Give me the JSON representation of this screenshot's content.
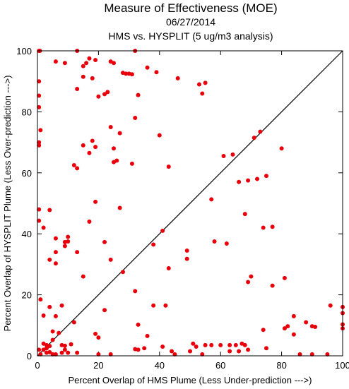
{
  "title": "Measure of Effectiveness (MOE)",
  "subtitle_date": "06/27/2014",
  "subtitle_analysis": "HMS vs. HYSPLIT  (5 ug/m3 analysis)",
  "chart_data": {
    "type": "scatter",
    "xlabel": "Percent Overlap of HMS Plume (Less Under-prediction --->)",
    "ylabel": "Percent Overlap of HYSPLIT Plume (Less Over-prediction --->)",
    "xlim": [
      0,
      100
    ],
    "ylim": [
      0,
      100
    ],
    "xticks": [
      0,
      20,
      40,
      60,
      80,
      100
    ],
    "yticks": [
      0,
      20,
      40,
      60,
      80,
      100
    ],
    "grid": false,
    "reference_line": "y = x",
    "colors": {
      "points": "#e8000b",
      "line": "#000000",
      "axes": "#000000"
    },
    "points": [
      [
        0.5,
        100
      ],
      [
        0.8,
        100
      ],
      [
        13,
        100
      ],
      [
        32,
        100
      ],
      [
        0.5,
        90
      ],
      [
        6,
        96.5
      ],
      [
        9,
        96
      ],
      [
        15,
        95
      ],
      [
        17,
        97.5
      ],
      [
        16,
        96
      ],
      [
        19,
        97
      ],
      [
        24,
        96.5
      ],
      [
        25,
        96
      ],
      [
        36,
        94.5
      ],
      [
        39,
        93
      ],
      [
        28,
        92.8
      ],
      [
        29,
        92.5
      ],
      [
        30,
        92.5
      ],
      [
        31,
        92.3
      ],
      [
        15,
        91.5
      ],
      [
        18,
        91
      ],
      [
        46,
        91
      ],
      [
        55,
        89.5
      ],
      [
        53,
        89
      ],
      [
        13,
        87.5
      ],
      [
        54,
        86
      ],
      [
        23,
        86.5
      ],
      [
        22,
        85.8
      ],
      [
        33,
        85.5
      ],
      [
        0.5,
        85.3
      ],
      [
        20,
        85
      ],
      [
        0.5,
        81.5
      ],
      [
        32,
        78
      ],
      [
        1,
        74
      ],
      [
        24,
        75
      ],
      [
        27,
        73
      ],
      [
        40,
        72.3
      ],
      [
        71,
        71.5
      ],
      [
        73,
        73.5
      ],
      [
        18,
        70.5
      ],
      [
        0.5,
        70
      ],
      [
        0.5,
        69
      ],
      [
        15,
        69
      ],
      [
        19,
        68.5
      ],
      [
        25,
        68
      ],
      [
        17,
        66.5
      ],
      [
        80,
        68
      ],
      [
        61,
        65.5
      ],
      [
        64,
        66
      ],
      [
        26,
        64
      ],
      [
        25,
        63.5
      ],
      [
        31,
        63
      ],
      [
        43,
        62
      ],
      [
        12,
        62.5
      ],
      [
        13,
        61.5
      ],
      [
        75,
        59
      ],
      [
        72,
        58
      ],
      [
        69,
        57.5
      ],
      [
        66,
        57
      ],
      [
        57,
        51.3
      ],
      [
        19,
        50.5
      ],
      [
        27,
        48.5
      ],
      [
        0.5,
        48
      ],
      [
        4,
        47.8
      ],
      [
        68,
        46.5
      ],
      [
        17,
        44
      ],
      [
        0.5,
        44.3
      ],
      [
        2,
        42
      ],
      [
        74,
        42
      ],
      [
        77,
        42.3
      ],
      [
        41,
        41
      ],
      [
        10,
        39
      ],
      [
        6,
        38.5
      ],
      [
        10,
        37.5
      ],
      [
        9,
        37.3
      ],
      [
        22,
        37.3
      ],
      [
        58,
        37.5
      ],
      [
        62,
        36.8
      ],
      [
        38,
        36.5
      ],
      [
        9,
        36
      ],
      [
        6,
        34
      ],
      [
        13,
        34
      ],
      [
        49,
        34.5
      ],
      [
        4,
        31.5
      ],
      [
        6,
        30.3
      ],
      [
        24,
        31.5
      ],
      [
        49,
        31.8
      ],
      [
        43,
        28.7
      ],
      [
        28,
        27.5
      ],
      [
        70,
        26
      ],
      [
        81,
        25.5
      ],
      [
        15,
        26
      ],
      [
        69,
        24.2
      ],
      [
        77,
        23
      ],
      [
        32,
        21.2
      ],
      [
        1,
        18.5
      ],
      [
        4,
        16
      ],
      [
        8,
        16.5
      ],
      [
        38,
        16.5
      ],
      [
        42,
        16.5
      ],
      [
        96,
        16.5
      ],
      [
        100,
        16
      ],
      [
        22,
        15
      ],
      [
        2,
        13.2
      ],
      [
        6,
        13
      ],
      [
        84,
        13
      ],
      [
        100,
        14
      ],
      [
        12,
        11
      ],
      [
        88,
        11
      ],
      [
        90,
        9.7
      ],
      [
        91,
        9.5
      ],
      [
        100,
        10.3
      ],
      [
        82,
        9.7
      ],
      [
        81,
        9
      ],
      [
        33,
        10.2
      ],
      [
        74,
        8.5
      ],
      [
        84,
        7
      ],
      [
        100,
        9
      ],
      [
        5,
        8
      ],
      [
        7,
        7.5
      ],
      [
        19,
        7.2
      ],
      [
        20,
        6
      ],
      [
        36,
        6.5
      ],
      [
        5,
        5.2
      ],
      [
        2,
        4
      ],
      [
        3,
        3.5
      ],
      [
        8,
        3.5
      ],
      [
        9,
        3.3
      ],
      [
        11,
        3.8
      ],
      [
        51,
        4
      ],
      [
        57,
        3.5
      ],
      [
        63,
        3.5
      ],
      [
        67,
        4
      ],
      [
        68,
        3.5
      ],
      [
        60,
        3.5
      ],
      [
        55,
        3.5
      ],
      [
        65,
        3.5
      ],
      [
        41,
        3
      ],
      [
        52,
        3
      ],
      [
        3,
        2.5
      ],
      [
        4,
        3.2
      ],
      [
        9,
        2
      ],
      [
        0.5,
        2
      ],
      [
        2,
        2
      ],
      [
        32,
        2.2
      ],
      [
        33,
        2
      ],
      [
        35,
        2.5
      ],
      [
        44,
        1.5
      ],
      [
        50,
        1.5
      ],
      [
        63,
        1.5
      ],
      [
        66,
        1.5
      ],
      [
        69,
        2
      ],
      [
        75,
        2.5
      ],
      [
        24,
        0.5
      ],
      [
        20,
        0.5
      ],
      [
        13,
        1
      ],
      [
        1,
        0.5
      ],
      [
        5,
        0.5
      ],
      [
        6,
        0.5
      ],
      [
        8,
        1
      ],
      [
        10,
        1
      ],
      [
        45,
        0.5
      ],
      [
        54,
        0.5
      ],
      [
        86,
        0.5
      ],
      [
        90,
        0.5
      ],
      [
        95,
        0.5
      ],
      [
        3,
        1
      ],
      [
        4,
        1.2
      ]
    ]
  }
}
